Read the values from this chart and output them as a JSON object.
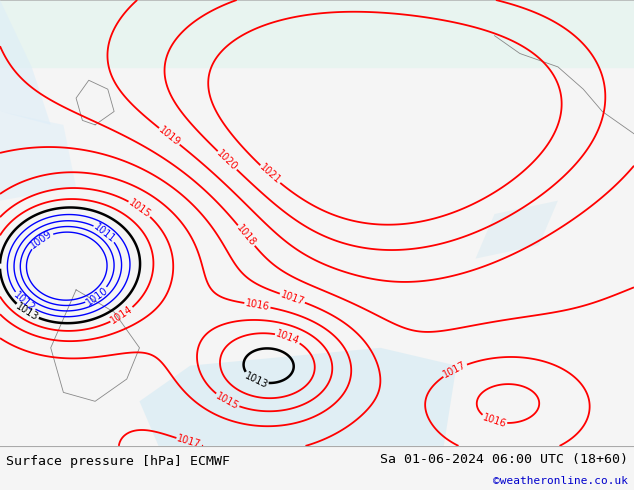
{
  "title_left": "Surface pressure [hPa] ECMWF",
  "title_right": "Sa 01-06-2024 06:00 UTC (18+60)",
  "watermark": "©weatheronline.co.uk",
  "figsize": [
    6.34,
    4.9
  ],
  "dpi": 100,
  "bottom_bar_color": "#f5f5f5",
  "bottom_bar_height": 0.09,
  "title_fontsize": 9.5,
  "watermark_color": "#0000cc",
  "watermark_fontsize": 8,
  "map_land_color": "#b8dfa0",
  "map_sea_color": "#d8eef8",
  "contour_red_color": "red",
  "contour_black_color": "black",
  "contour_blue_color": "blue",
  "levels_red": [
    1014,
    1015,
    1016,
    1017,
    1018,
    1019,
    1020,
    1021
  ],
  "levels_black": [
    1013
  ],
  "levels_blue": [
    1009,
    1010,
    1011,
    1012
  ],
  "label_fontsize": 7
}
